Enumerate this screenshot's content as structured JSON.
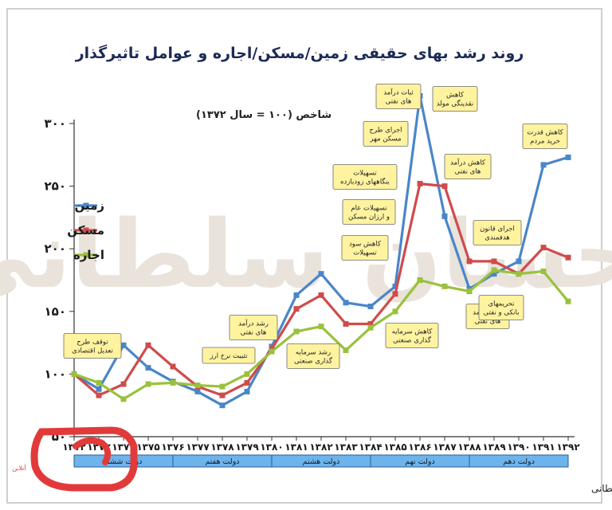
{
  "chart_data": {
    "type": "line",
    "title": "روند رشد بهای حقیقی زمین/مسکن/اجاره و عوامل تاثیرگذار",
    "subtitle": "شاخص (۱۰۰ = سال ۱۳۷۲)",
    "ylim": [
      50,
      300
    ],
    "yticks": [
      "۵۰",
      "۱۰۰",
      "۱۵۰",
      "۲۰۰",
      "۲۵۰",
      "۳۰۰"
    ],
    "ytick_values": [
      50,
      100,
      150,
      200,
      250,
      300
    ],
    "categories": [
      "۱۳۷۲",
      "۱۳۷۳",
      "۱۳۷۴",
      "۱۳۷۵",
      "۱۳۷۶",
      "۱۳۷۷",
      "۱۳۷۸",
      "۱۳۷۹",
      "۱۳۸۰",
      "۱۳۸۱",
      "۱۳۸۲",
      "۱۳۸۳",
      "۱۳۸۴",
      "۱۳۸۵",
      "۱۳۸۶",
      "۱۳۸۷",
      "۱۳۸۸",
      "۱۳۸۹",
      "۱۳۹۰",
      "۱۳۹۱",
      "۱۳۹۲"
    ],
    "series": [
      {
        "name": "زمین",
        "color": "#4a86c8",
        "values": [
          100,
          88,
          123,
          105,
          94,
          86,
          75,
          86,
          122,
          163,
          180,
          157,
          154,
          170,
          322,
          226,
          168,
          180,
          190,
          267,
          273
        ]
      },
      {
        "name": "مسکن",
        "color": "#cf4b4b",
        "values": [
          100,
          83,
          92,
          123,
          106,
          90,
          83,
          93,
          120,
          152,
          163,
          140,
          140,
          164,
          252,
          250,
          190,
          190,
          180,
          201,
          193
        ]
      },
      {
        "name": "اجاره",
        "color": "#9ac13c",
        "values": [
          100,
          93,
          80,
          92,
          93,
          91,
          90,
          100,
          118,
          134,
          138,
          119,
          137,
          150,
          175,
          170,
          166,
          183,
          180,
          182,
          158
        ]
      }
    ],
    "legend_position": "left",
    "grid": false,
    "periods": [
      {
        "label": "دولت ششم",
        "from": 0,
        "to": 4
      },
      {
        "label": "دولت هفتم",
        "from": 4,
        "to": 8
      },
      {
        "label": "دولت هشتم",
        "from": 8,
        "to": 12
      },
      {
        "label": "دولت نهم",
        "from": 12,
        "to": 16
      },
      {
        "label": "دولت دهم",
        "from": 16,
        "to": 20
      }
    ],
    "annotations": [
      {
        "lines": [
          "توقف طرح",
          "تعدیل اقتصادی"
        ],
        "year_index": 0
      },
      {
        "lines": [
          "تثبیت نرخ ارز"
        ],
        "year_index": 6
      },
      {
        "lines": [
          "رشد درآمد",
          "های نفتی"
        ],
        "year_index": 7
      },
      {
        "lines": [
          "رشد سرمایه",
          "گذاری صنعتی"
        ],
        "year_index": 10
      },
      {
        "lines": [
          "کاهش سود",
          "تسهیلات"
        ],
        "year_index": 12
      },
      {
        "lines": [
          "تسهیلات",
          "بنگاههای زودبازده"
        ],
        "year_index": 12
      },
      {
        "lines": [
          "تسهیلات عام",
          "و ارزان مسکن"
        ],
        "year_index": 12
      },
      {
        "lines": [
          "کاهش سرمایه",
          "گذاری صنعتی"
        ],
        "year_index": 14
      },
      {
        "lines": [
          "اجرای طرح",
          "مسکن مهر"
        ],
        "year_index": 14
      },
      {
        "lines": [
          "ثبات درآمد",
          "های نفتی"
        ],
        "year_index": 15
      },
      {
        "lines": [
          "کاهش",
          "نقدینگی مولد"
        ],
        "year_index": 16
      },
      {
        "lines": [
          "کاهش درآمد",
          "های نفتی"
        ],
        "year_index": 17
      },
      {
        "lines": [
          "رشد درآمد",
          "های نفتی"
        ],
        "year_index": 17
      },
      {
        "lines": [
          "اجرای قانون",
          "هدفمندی"
        ],
        "year_index": 18
      },
      {
        "lines": [
          "تحریمهای",
          "بانکی و نفتی"
        ],
        "year_index": 19
      },
      {
        "lines": [
          "کاهش قدرت",
          "خرید مردم"
        ],
        "year_index": 20
      }
    ],
    "credit": "طرح و تحلیل: احسان سلطانی",
    "watermark": "احسان سلطانی",
    "logo_text": "آنلاین"
  }
}
